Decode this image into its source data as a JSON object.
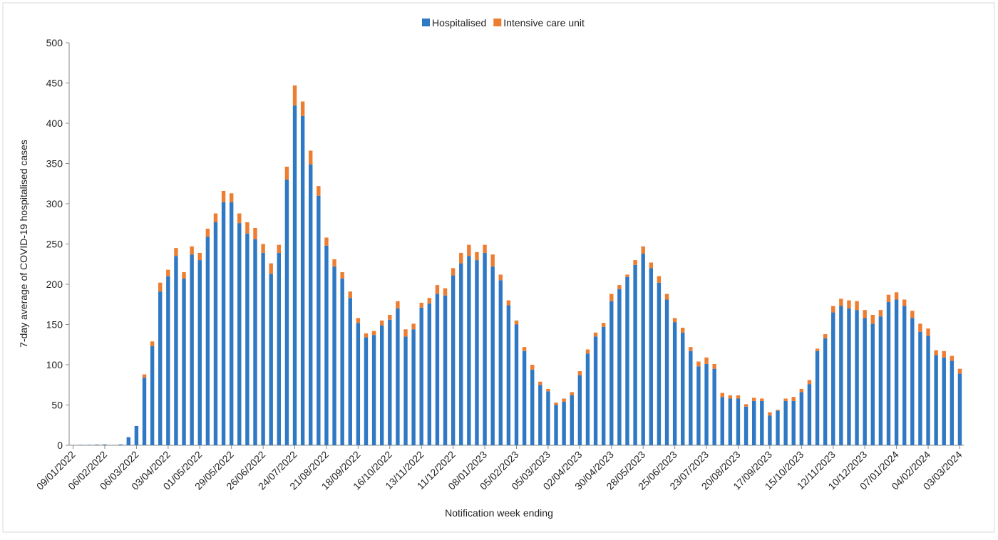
{
  "chart_data": {
    "type": "stacked_bar",
    "x_label": "Notification week ending",
    "y_label": "7-day average of COVID-19 hospitalised cases",
    "categories": [
      "09/01/2022",
      null,
      null,
      null,
      "06/02/2022",
      null,
      null,
      null,
      "06/03/2022",
      null,
      null,
      null,
      "03/04/2022",
      null,
      null,
      null,
      "01/05/2022",
      null,
      null,
      null,
      "29/05/2022",
      null,
      null,
      null,
      "26/06/2022",
      null,
      null,
      null,
      "24/07/2022",
      null,
      null,
      null,
      "21/08/2022",
      null,
      null,
      null,
      "18/09/2022",
      null,
      null,
      null,
      "16/10/2022",
      null,
      null,
      null,
      "13/11/2022",
      null,
      null,
      null,
      "11/12/2022",
      null,
      null,
      null,
      "08/01/2023",
      null,
      null,
      null,
      "05/02/2023",
      null,
      null,
      null,
      "05/03/2023",
      null,
      null,
      null,
      "02/04/2023",
      null,
      null,
      null,
      "30/04/2023",
      null,
      null,
      null,
      "28/05/2023",
      null,
      null,
      null,
      "25/06/2023",
      null,
      null,
      null,
      "23/07/2023",
      null,
      null,
      null,
      "20/08/2023",
      null,
      null,
      null,
      "17/09/2023",
      null,
      null,
      null,
      "15/10/2023",
      null,
      null,
      null,
      "12/11/2023",
      null,
      null,
      null,
      "10/12/2023",
      null,
      null,
      null,
      "07/01/2024",
      null,
      null,
      null,
      "04/02/2024",
      null,
      null,
      null,
      "03/03/2024"
    ],
    "series": [
      {
        "name": "Hospitalised",
        "color": "#2f78c4",
        "values": [
          0,
          0.5,
          0.5,
          0.5,
          1,
          0,
          1,
          10,
          24,
          84,
          123,
          191,
          210,
          235,
          207,
          237,
          230,
          259,
          277,
          302,
          302,
          276,
          263,
          256,
          239,
          213,
          239,
          330,
          422,
          409,
          349,
          310,
          248,
          222,
          207,
          183,
          152,
          134,
          137,
          149,
          156,
          170,
          135,
          144,
          171,
          176,
          188,
          186,
          211,
          226,
          235,
          230,
          239,
          222,
          205,
          174,
          150,
          117,
          94,
          75,
          67,
          50,
          54,
          62,
          87,
          114,
          135,
          147,
          179,
          194,
          209,
          224,
          238,
          220,
          202,
          181,
          153,
          140,
          117,
          98,
          101,
          95,
          60,
          58,
          58,
          48,
          55,
          55,
          37,
          43,
          55,
          55,
          66,
          76,
          117,
          133,
          165,
          173,
          170,
          168,
          158,
          151,
          160,
          178,
          181,
          173,
          158,
          141,
          136,
          112,
          109,
          105,
          89
        ]
      },
      {
        "name": "Intensive care unit",
        "color": "#ed7d31",
        "values": [
          0,
          0,
          0,
          0.5,
          0,
          0,
          0,
          0,
          0,
          4,
          6,
          11,
          8,
          10,
          8,
          10,
          9,
          10,
          11,
          14,
          11,
          12,
          14,
          14,
          11,
          13,
          10,
          16,
          25,
          18,
          17,
          12,
          10,
          9,
          8,
          8,
          6,
          5,
          5,
          6,
          6,
          9,
          9,
          7,
          6,
          7,
          11,
          9,
          9,
          13,
          14,
          10,
          10,
          15,
          7,
          6,
          5,
          5,
          6,
          4,
          3,
          3,
          4,
          4,
          5,
          5,
          5,
          5,
          9,
          5,
          3,
          6,
          9,
          7,
          8,
          7,
          5,
          6,
          5,
          6,
          8,
          6,
          5,
          4,
          4,
          3,
          4,
          3,
          4,
          1,
          3,
          5,
          4,
          5,
          3,
          5,
          8,
          9,
          10,
          11,
          10,
          11,
          8,
          9,
          9,
          8,
          9,
          10,
          9,
          6,
          8,
          6,
          6
        ]
      }
    ],
    "ylim": [
      0,
      500
    ],
    "yticks": [
      0,
      50,
      100,
      150,
      200,
      250,
      300,
      350,
      400,
      450,
      500
    ],
    "legend": "top"
  }
}
